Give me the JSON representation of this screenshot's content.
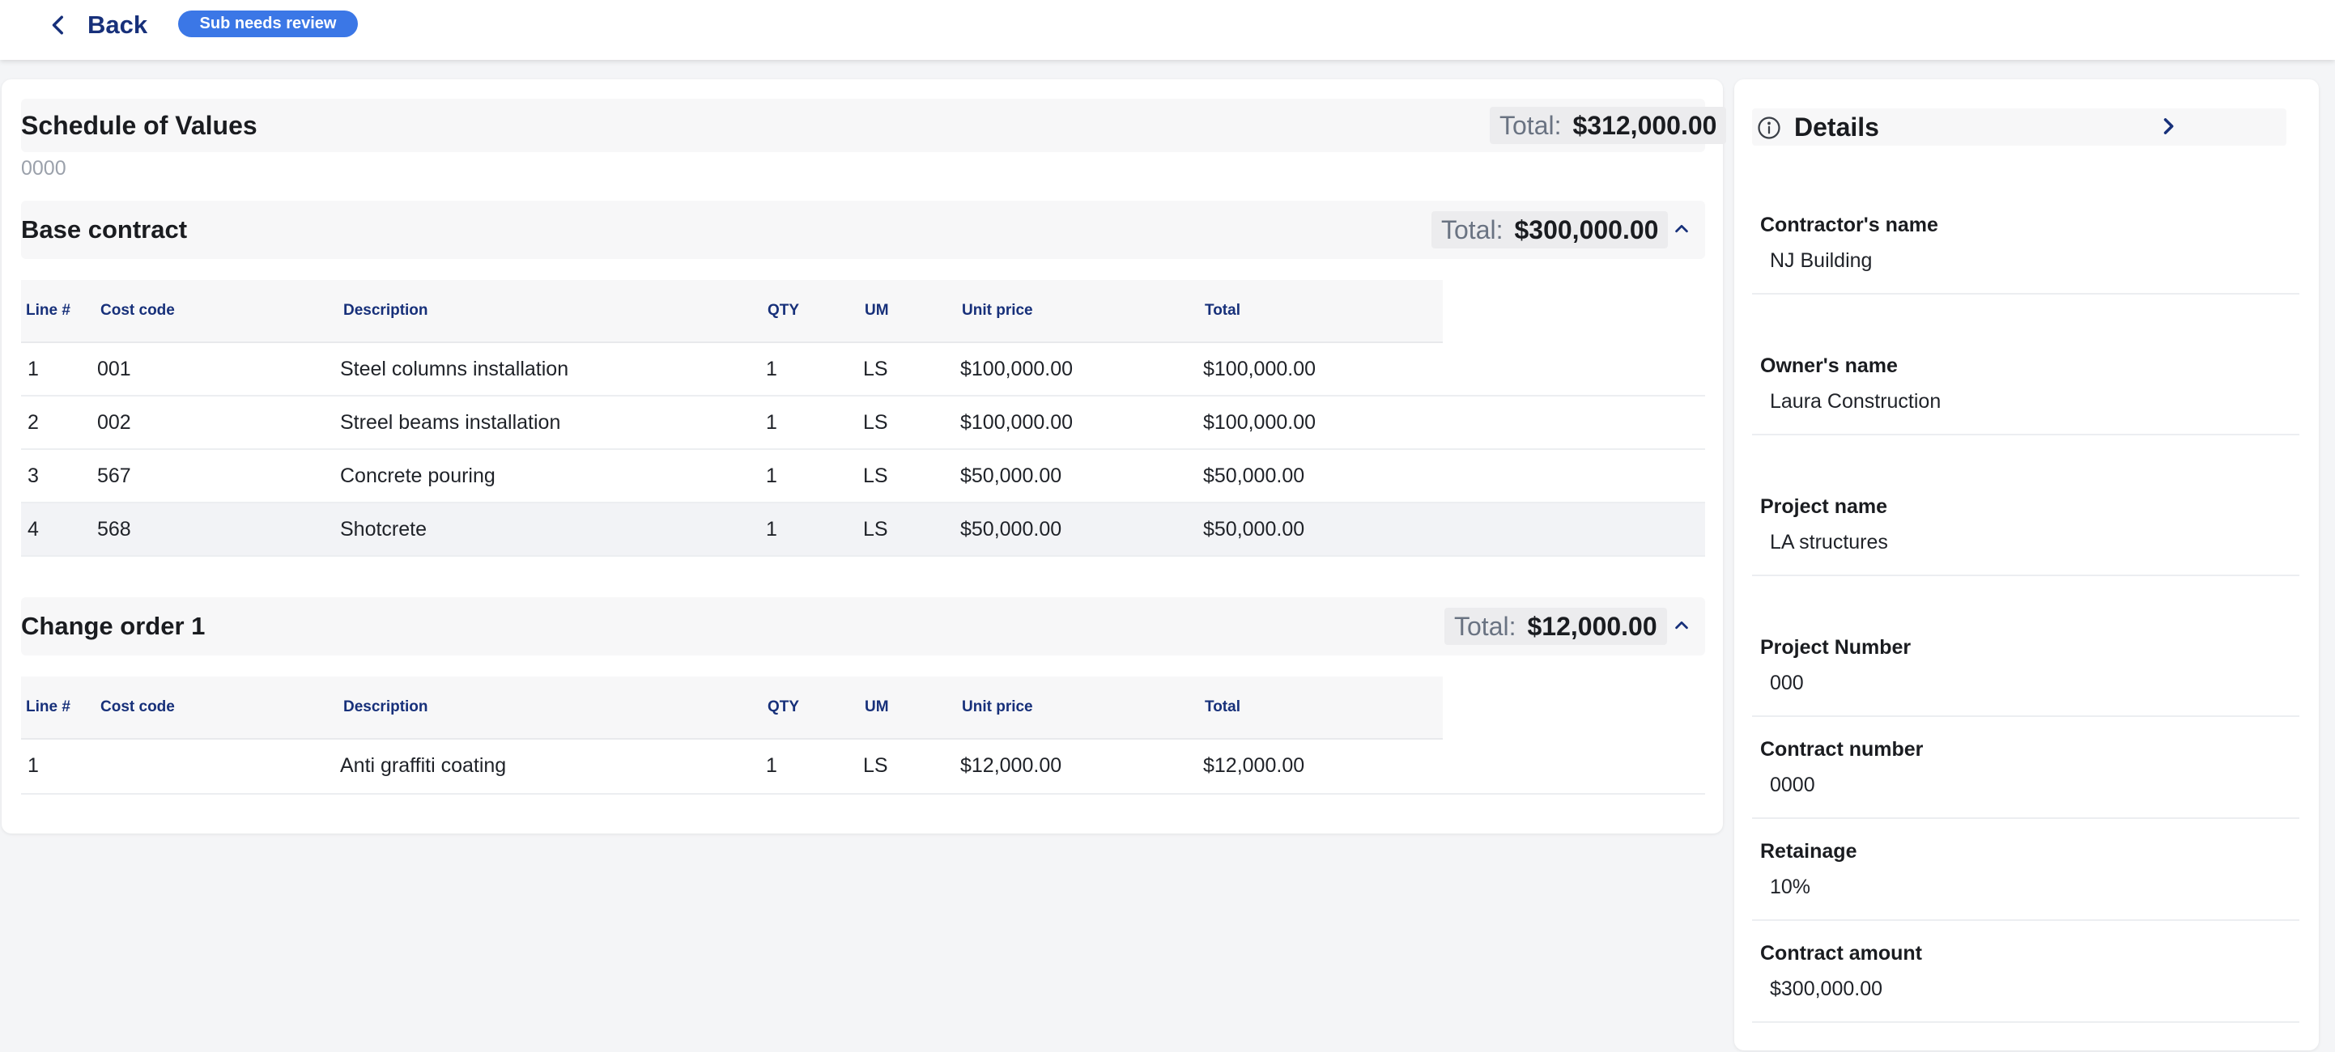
{
  "topbar": {
    "back_label": "Back",
    "status": "Sub needs review"
  },
  "sov": {
    "title": "Schedule of Values",
    "total_label": "Total:",
    "total_value": "$312,000.00",
    "subtitle": "0000"
  },
  "columns": [
    "Line #",
    "Cost code",
    "Description",
    "QTY",
    "UM",
    "Unit price",
    "Total"
  ],
  "base_contract": {
    "title": "Base contract",
    "total_label": "Total:",
    "total_value": "$300,000.00",
    "rows": [
      {
        "line": "1",
        "code": "001",
        "desc": "Steel columns installation",
        "qty": "1",
        "um": "LS",
        "unit": "$100,000.00",
        "total": "$100,000.00"
      },
      {
        "line": "2",
        "code": "002",
        "desc": "Streel beams installation",
        "qty": "1",
        "um": "LS",
        "unit": "$100,000.00",
        "total": "$100,000.00"
      },
      {
        "line": "3",
        "code": "567",
        "desc": "Concrete pouring",
        "qty": "1",
        "um": "LS",
        "unit": "$50,000.00",
        "total": "$50,000.00"
      },
      {
        "line": "4",
        "code": "568",
        "desc": "Shotcrete",
        "qty": "1",
        "um": "LS",
        "unit": "$50,000.00",
        "total": "$50,000.00"
      }
    ]
  },
  "change_order": {
    "title": "Change order 1",
    "total_label": "Total:",
    "total_value": "$12,000.00",
    "rows": [
      {
        "line": "1",
        "code": "",
        "desc": "Anti graffiti coating",
        "qty": "1",
        "um": "LS",
        "unit": "$12,000.00",
        "total": "$12,000.00"
      }
    ]
  },
  "details": {
    "title": "Details",
    "fields": [
      {
        "label": "Contractor's name",
        "value": "NJ Building"
      },
      {
        "label": "Owner's name",
        "value": "Laura Construction"
      },
      {
        "label": "Project name",
        "value": "LA structures"
      },
      {
        "label": "Project Number",
        "value": "000"
      },
      {
        "label": "Contract number",
        "value": "0000"
      },
      {
        "label": "Retainage",
        "value": "10%"
      },
      {
        "label": "Contract amount",
        "value": "$300,000.00"
      }
    ]
  },
  "colors": {
    "accent": "#3b77e6",
    "navy": "#17307a",
    "background": "#f4f5f7"
  }
}
